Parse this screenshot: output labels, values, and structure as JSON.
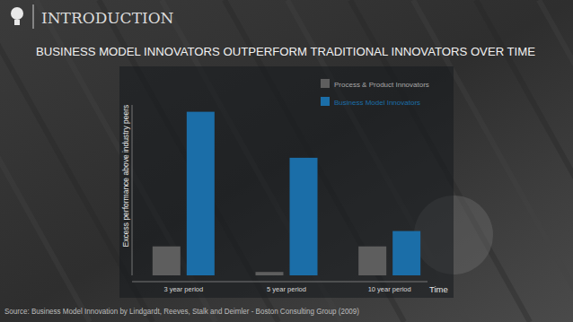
{
  "header": {
    "title": "INTRODUCTION"
  },
  "chart_data": {
    "type": "bar",
    "title": "BUSINESS MODEL INNOVATORS OUTPERFORM TRADITIONAL INNOVATORS OVER TIME",
    "categories": [
      "3 year period",
      "5 year period",
      "10 year period"
    ],
    "series": [
      {
        "name": "Process & Product Innovators",
        "color": "#5e5e5e",
        "values": [
          1.7,
          0.2,
          1.7
        ]
      },
      {
        "name": "Business Model Innovators",
        "color": "#1b6ea8",
        "values": [
          9.6,
          6.9,
          2.6
        ]
      }
    ],
    "ylim": [
      0,
      10
    ],
    "y_label": "Excess performance above industry peers",
    "x_label": "Time",
    "legend": "top-right",
    "tick_labels": "x",
    "grid": false,
    "source": "Source: Business Model Innovation by Lindgardt, Reeves, Stalk and Deimler - Boston Consulting Group (2009)"
  }
}
